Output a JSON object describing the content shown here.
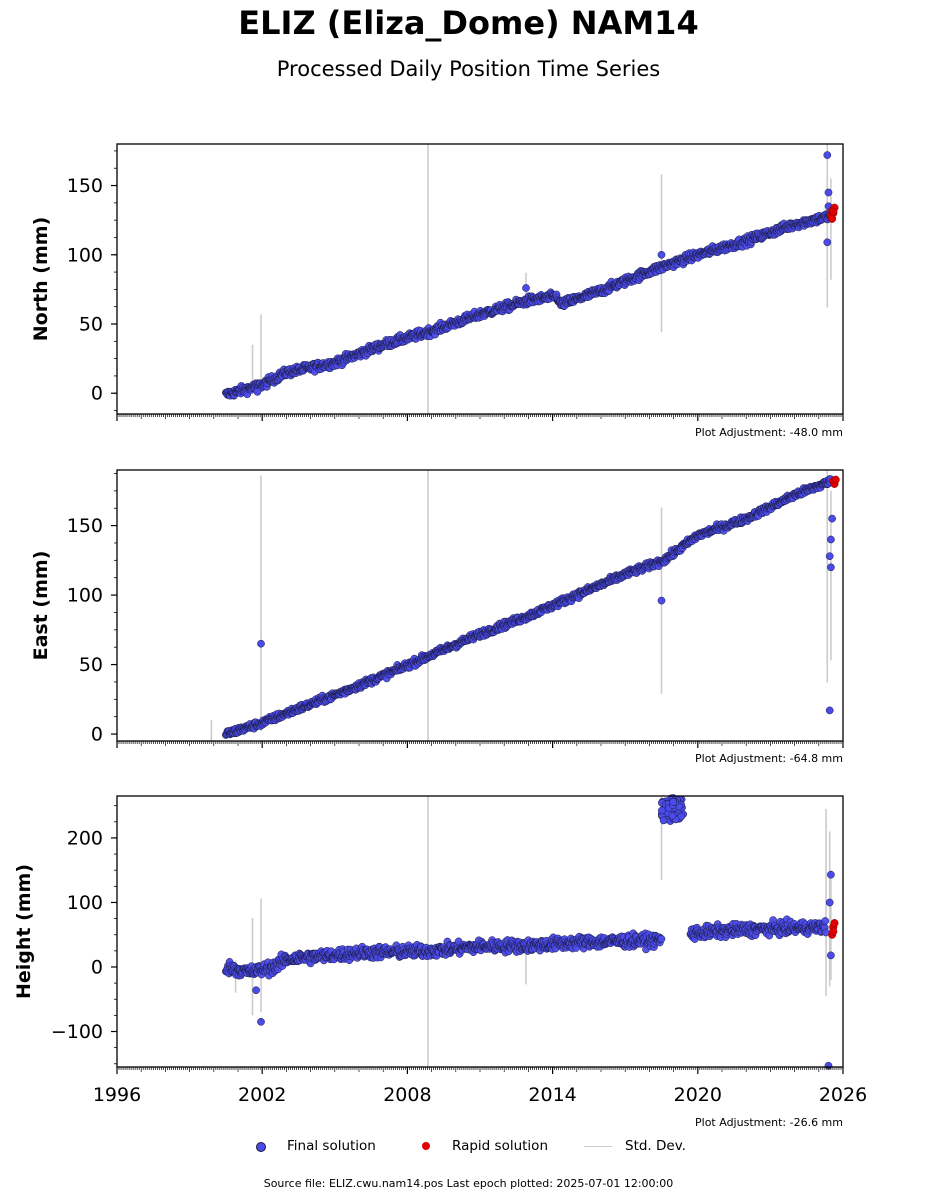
{
  "title": "ELIZ (Eliza_Dome) NAM14",
  "subtitle": "Processed Daily Position Time Series",
  "source_note": "Source file: ELIZ.cwu.nam14.pos  Last epoch plotted: 2025-07-01 12:00:00",
  "legend": {
    "final_label": "Final solution",
    "rapid_label": "Rapid solution",
    "std_label": "Std. Dev."
  },
  "colors": {
    "final": "#4b4bea",
    "final_edge": "#1a1a40",
    "rapid": "#e00000",
    "stddev": "#cccccc"
  },
  "chart_data": [
    {
      "type": "scatter",
      "ylabel": "North (mm)",
      "adjustment_label": "Plot Adjustment: -48.0 mm",
      "xlim": [
        1996,
        2026
      ],
      "ylim": [
        -15,
        180
      ],
      "yticks": [
        0,
        50,
        100,
        150
      ],
      "grid": false,
      "series": [
        {
          "name": "Final solution",
          "trend": [
            [
              2000.5,
              -1
            ],
            [
              2002,
              6
            ],
            [
              2003,
              15
            ],
            [
              2005,
              22
            ],
            [
              2007,
              35
            ],
            [
              2009,
              45
            ],
            [
              2011,
              57
            ],
            [
              2013,
              67
            ],
            [
              2014.2,
              70
            ],
            [
              2014.3,
              64
            ],
            [
              2016,
              74
            ],
            [
              2018,
              88
            ],
            [
              2020,
              100
            ],
            [
              2022,
              110
            ],
            [
              2024,
              122
            ],
            [
              2025.5,
              128
            ]
          ],
          "scatter_mm": 2.5,
          "outliers": [
            [
              2001.8,
              1
            ],
            [
              2012.9,
              76
            ],
            [
              2018.5,
              100
            ],
            [
              2025.35,
              172
            ],
            [
              2025.4,
              145
            ],
            [
              2025.35,
              109
            ],
            [
              2025.4,
              135
            ]
          ]
        },
        {
          "name": "Rapid solution",
          "points": [
            [
              2025.5,
              128
            ],
            [
              2025.55,
              132
            ],
            [
              2025.6,
              130
            ],
            [
              2025.65,
              134
            ],
            [
              2025.55,
              126
            ],
            [
              2025.6,
              131
            ]
          ]
        }
      ],
      "stddev_bars": [
        [
          2001.6,
          8,
          35
        ],
        [
          2001.95,
          5,
          57
        ],
        [
          2008.85,
          -15,
          180
        ],
        [
          2012.9,
          62,
          87
        ],
        [
          2018.5,
          44,
          158
        ],
        [
          2025.35,
          62,
          180
        ],
        [
          2025.5,
          82,
          155
        ]
      ]
    },
    {
      "type": "scatter",
      "ylabel": "East (mm)",
      "adjustment_label": "Plot Adjustment: -64.8 mm",
      "xlim": [
        1996,
        2026
      ],
      "ylim": [
        -5,
        190
      ],
      "yticks": [
        0,
        50,
        100,
        150
      ],
      "grid": false,
      "series": [
        {
          "name": "Final solution",
          "trend": [
            [
              2000.5,
              0
            ],
            [
              2002,
              8
            ],
            [
              2003,
              15
            ],
            [
              2005,
              28
            ],
            [
              2007,
              42
            ],
            [
              2009,
              57
            ],
            [
              2011,
              72
            ],
            [
              2013,
              85
            ],
            [
              2015,
              100
            ],
            [
              2017,
              115
            ],
            [
              2018.6,
              125
            ],
            [
              2020,
              143
            ],
            [
              2022,
              155
            ],
            [
              2024,
              172
            ],
            [
              2025.5,
              182
            ]
          ],
          "scatter_mm": 2.0,
          "outliers": [
            [
              2001.95,
              65
            ],
            [
              2018.5,
              96
            ],
            [
              2025.45,
              17
            ],
            [
              2025.5,
              120
            ],
            [
              2025.45,
              128
            ],
            [
              2025.5,
              140
            ],
            [
              2025.55,
              155
            ]
          ]
        },
        {
          "name": "Rapid solution",
          "points": [
            [
              2025.6,
              182
            ],
            [
              2025.65,
              180
            ],
            [
              2025.7,
              183
            ]
          ]
        }
      ],
      "stddev_bars": [
        [
          1999.9,
          -5,
          10
        ],
        [
          2001.95,
          2,
          186
        ],
        [
          2008.85,
          -5,
          190
        ],
        [
          2018.5,
          29,
          163
        ],
        [
          2025.35,
          37,
          190
        ],
        [
          2025.5,
          53,
          175
        ]
      ]
    },
    {
      "type": "scatter",
      "ylabel": "Height (mm)",
      "adjustment_label": "Plot Adjustment: -26.6 mm",
      "xlim": [
        1996,
        2026
      ],
      "ylim": [
        -155,
        265
      ],
      "yticks": [
        -100,
        0,
        100,
        200
      ],
      "xticks": [
        1996,
        2002,
        2008,
        2014,
        2020,
        2026
      ],
      "grid": false,
      "series": [
        {
          "name": "Final solution",
          "trend": [
            [
              2000.5,
              0
            ],
            [
              2001.5,
              -8
            ],
            [
              2002.5,
              0
            ],
            [
              2003,
              12
            ],
            [
              2006,
              22
            ],
            [
              2009,
              25
            ],
            [
              2011,
              32
            ],
            [
              2013,
              33
            ],
            [
              2015,
              38
            ],
            [
              2018.5,
              42
            ]
          ],
          "trend2": [
            [
              2019.7,
              52
            ],
            [
              2022,
              58
            ],
            [
              2025.3,
              62
            ]
          ],
          "scatter_mm": 8,
          "outliers": [
            [
              2001.75,
              -36
            ],
            [
              2001.95,
              -85
            ],
            [
              2025.4,
              -153
            ],
            [
              2025.45,
              100
            ],
            [
              2025.5,
              143
            ],
            [
              2025.5,
              18
            ]
          ],
          "cluster": [
            [
              2018.5,
              2019.4,
              225,
              262
            ]
          ]
        },
        {
          "name": "Rapid solution",
          "points": [
            [
              2025.55,
              50
            ],
            [
              2025.6,
              62
            ],
            [
              2025.65,
              68
            ],
            [
              2025.6,
              55
            ]
          ]
        }
      ],
      "stddev_bars": [
        [
          2000.9,
          -40,
          10
        ],
        [
          2001.6,
          -75,
          76
        ],
        [
          2001.95,
          -70,
          106
        ],
        [
          2008.85,
          -155,
          265
        ],
        [
          2012.9,
          -27,
          27
        ],
        [
          2018.5,
          135,
          265
        ],
        [
          2025.3,
          -45,
          245
        ],
        [
          2025.45,
          -30,
          210
        ],
        [
          2025.5,
          -20,
          150
        ]
      ]
    }
  ]
}
